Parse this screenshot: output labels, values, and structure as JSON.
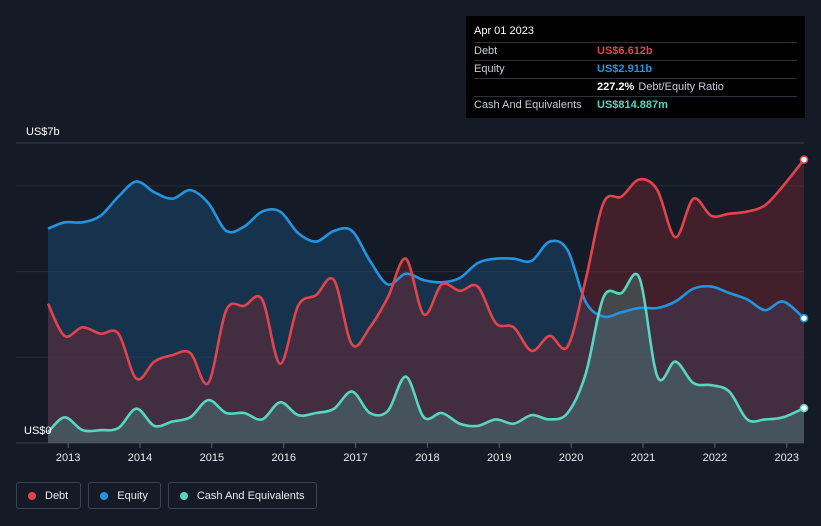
{
  "tooltip": {
    "date": "Apr 01 2023",
    "rows": [
      {
        "label": "Debt",
        "value": "US$6.612b",
        "color": "#e2444c"
      },
      {
        "label": "Equity",
        "value": "US$2.911b",
        "color": "#2394df"
      },
      {
        "label": "",
        "value": "227.2%",
        "extra": "Debt/Equity Ratio",
        "color": "#ffffff"
      },
      {
        "label": "Cash And Equivalents",
        "value": "US$814.887m",
        "color": "#58d6c0"
      }
    ]
  },
  "legend": [
    {
      "label": "Debt",
      "color": "#e2444c"
    },
    {
      "label": "Equity",
      "color": "#2394df"
    },
    {
      "label": "Cash And Equivalents",
      "color": "#58d6c0"
    }
  ],
  "chart_data": {
    "type": "area",
    "y_top_label": "US$7b",
    "y_bottom_label": "US$0",
    "ylim": [
      0,
      7
    ],
    "xlim": [
      2012.72,
      2023.24
    ],
    "x_ticks": [
      "2013",
      "2014",
      "2015",
      "2016",
      "2017",
      "2018",
      "2019",
      "2020",
      "2021",
      "2022",
      "2023"
    ],
    "series": [
      {
        "name": "Debt",
        "color": "#e2444c",
        "x": [
          2012.72,
          2012.95,
          2013.2,
          2013.45,
          2013.7,
          2013.95,
          2014.2,
          2014.45,
          2014.7,
          2014.95,
          2015.2,
          2015.45,
          2015.7,
          2015.95,
          2016.2,
          2016.45,
          2016.7,
          2016.95,
          2017.2,
          2017.45,
          2017.7,
          2017.95,
          2018.2,
          2018.45,
          2018.7,
          2018.95,
          2019.2,
          2019.45,
          2019.7,
          2019.95,
          2020.2,
          2020.45,
          2020.7,
          2020.95,
          2021.2,
          2021.45,
          2021.7,
          2021.95,
          2022.2,
          2022.45,
          2022.7,
          2022.95,
          2023.24
        ],
        "values": [
          3.25,
          2.5,
          2.7,
          2.55,
          2.55,
          1.5,
          1.9,
          2.05,
          2.1,
          1.4,
          3.1,
          3.2,
          3.35,
          1.85,
          3.2,
          3.45,
          3.8,
          2.3,
          2.7,
          3.4,
          4.3,
          3.0,
          3.7,
          3.55,
          3.65,
          2.8,
          2.7,
          2.15,
          2.5,
          2.25,
          3.8,
          5.6,
          5.75,
          6.15,
          5.9,
          4.8,
          5.7,
          5.3,
          5.35,
          5.4,
          5.55,
          6.0,
          6.612
        ]
      },
      {
        "name": "Equity",
        "color": "#2394df",
        "x": [
          2012.72,
          2012.95,
          2013.2,
          2013.45,
          2013.7,
          2013.95,
          2014.2,
          2014.45,
          2014.7,
          2014.95,
          2015.2,
          2015.45,
          2015.7,
          2015.95,
          2016.2,
          2016.45,
          2016.7,
          2016.95,
          2017.2,
          2017.45,
          2017.7,
          2017.95,
          2018.2,
          2018.45,
          2018.7,
          2018.95,
          2019.2,
          2019.45,
          2019.7,
          2019.95,
          2020.2,
          2020.45,
          2020.7,
          2020.95,
          2021.2,
          2021.45,
          2021.7,
          2021.95,
          2022.2,
          2022.45,
          2022.7,
          2022.95,
          2023.24
        ],
        "values": [
          5.0,
          5.15,
          5.15,
          5.3,
          5.75,
          6.1,
          5.85,
          5.7,
          5.9,
          5.6,
          4.95,
          5.05,
          5.4,
          5.4,
          4.9,
          4.7,
          4.95,
          4.95,
          4.25,
          3.7,
          3.95,
          3.8,
          3.75,
          3.85,
          4.2,
          4.3,
          4.3,
          4.25,
          4.7,
          4.5,
          3.3,
          2.95,
          3.05,
          3.15,
          3.15,
          3.3,
          3.6,
          3.65,
          3.5,
          3.35,
          3.1,
          3.3,
          2.911
        ]
      },
      {
        "name": "Cash And Equivalents",
        "color": "#58d6c0",
        "x": [
          2012.72,
          2012.95,
          2013.2,
          2013.45,
          2013.7,
          2013.95,
          2014.2,
          2014.45,
          2014.7,
          2014.95,
          2015.2,
          2015.45,
          2015.7,
          2015.95,
          2016.2,
          2016.45,
          2016.7,
          2016.95,
          2017.2,
          2017.45,
          2017.7,
          2017.95,
          2018.2,
          2018.45,
          2018.7,
          2018.95,
          2019.2,
          2019.45,
          2019.7,
          2019.95,
          2020.2,
          2020.45,
          2020.7,
          2020.95,
          2021.2,
          2021.45,
          2021.7,
          2021.95,
          2022.2,
          2022.45,
          2022.7,
          2022.95,
          2023.24
        ],
        "values": [
          0.25,
          0.6,
          0.3,
          0.3,
          0.35,
          0.8,
          0.4,
          0.5,
          0.6,
          1.0,
          0.7,
          0.7,
          0.55,
          0.95,
          0.65,
          0.7,
          0.8,
          1.2,
          0.7,
          0.75,
          1.55,
          0.6,
          0.7,
          0.45,
          0.4,
          0.55,
          0.45,
          0.65,
          0.55,
          0.7,
          1.6,
          3.4,
          3.5,
          3.85,
          1.55,
          1.9,
          1.4,
          1.35,
          1.2,
          0.55,
          0.55,
          0.6,
          0.815
        ]
      }
    ]
  }
}
